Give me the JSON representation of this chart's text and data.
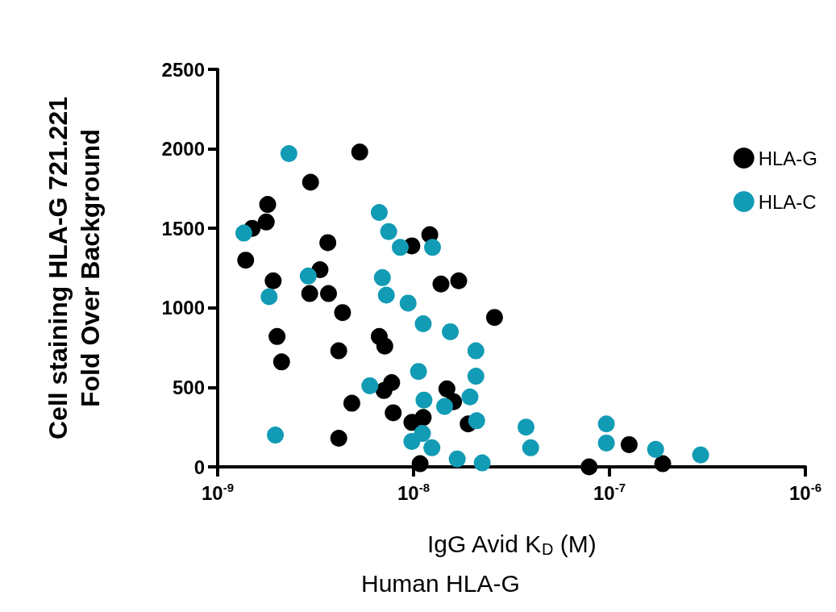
{
  "chart_data": {
    "type": "scatter",
    "ylabel": "Cell staining HLA-G 721.221\nFold Over Background",
    "xlabel": "IgG Avid K$_{D}$ (M)",
    "annotations": [
      "Human HLA-G"
    ],
    "log": "x",
    "xlim": [
      1e-09,
      1e-06
    ],
    "xticks": [
      {
        "value": 1e-09,
        "label": "10$^{-9}$"
      },
      {
        "value": 1e-08,
        "label": "10$^{-8}$"
      },
      {
        "value": 1e-07,
        "label": "10$^{-7}$"
      },
      {
        "value": 1e-06,
        "label": "10$^{-6}$"
      }
    ],
    "ylim": [
      0,
      2500
    ],
    "yticks": [
      0,
      500,
      1000,
      1500,
      2000,
      2500
    ],
    "grid": false,
    "legend": "top right",
    "marker": "circle",
    "series": [
      {
        "name": "HLA-G",
        "color": "#000000",
        "x": [
          1.5e-09,
          1.8e-09,
          1.77e-09,
          5.31e-09,
          2.98e-09,
          1.39e-09,
          3.65e-09,
          3.33e-09,
          1.92e-09,
          2.95e-09,
          3.68e-09,
          4.34e-09,
          2.01e-09,
          2.12e-09,
          4.15e-09,
          6.68e-09,
          7.13e-09,
          1.21e-08,
          9.8e-09,
          1.38e-08,
          1.7e-08,
          2.59e-08,
          7.73e-09,
          7.06e-09,
          4.84e-09,
          7.87e-09,
          1.48e-08,
          1.6e-08,
          9.8e-09,
          1.12e-08,
          1.9e-08,
          4.15e-09,
          1.08e-08,
          1.26e-07,
          1.87e-07,
          7.87e-08
        ],
        "values": [
          1500,
          1650,
          1540,
          1980,
          1790,
          1300,
          1410,
          1240,
          1170,
          1090,
          1090,
          970,
          820,
          660,
          730,
          820,
          760,
          1460,
          1390,
          1150,
          1170,
          940,
          530,
          480,
          400,
          340,
          490,
          410,
          280,
          310,
          270,
          180,
          20,
          140,
          20,
          0
        ]
      },
      {
        "name": "HLA-C",
        "color": "#129bb5",
        "x": [
          2.31e-09,
          1.36e-09,
          6.68e-09,
          7.46e-09,
          8.55e-09,
          1.25e-08,
          2.9e-09,
          6.93e-09,
          1.83e-09,
          7.26e-09,
          9.38e-09,
          1.12e-08,
          1.54e-08,
          2.08e-08,
          1.06e-08,
          2.08e-08,
          5.98e-09,
          1.94e-08,
          1.13e-08,
          1.44e-08,
          2.1e-08,
          1.97e-09,
          1.11e-08,
          9.8e-09,
          1.24e-08,
          1.67e-08,
          2.24e-08,
          3.75e-08,
          3.96e-08,
          9.64e-08,
          9.64e-08,
          1.72e-07,
          2.92e-07
        ],
        "values": [
          1970,
          1470,
          1600,
          1480,
          1380,
          1380,
          1200,
          1190,
          1070,
          1080,
          1030,
          900,
          850,
          730,
          600,
          570,
          510,
          440,
          420,
          380,
          290,
          200,
          210,
          160,
          120,
          50,
          25,
          250,
          120,
          270,
          150,
          110,
          75
        ]
      }
    ]
  }
}
